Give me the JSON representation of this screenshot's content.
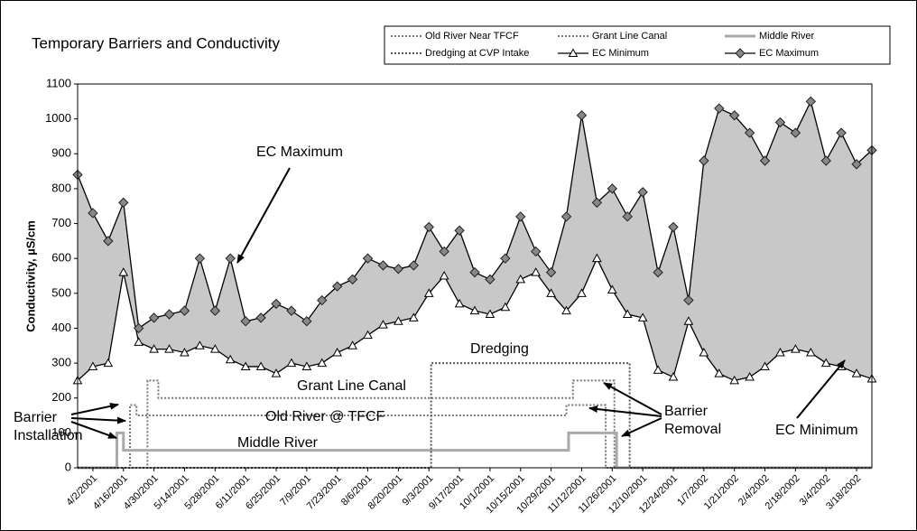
{
  "chart_data": {
    "type": "line",
    "title": "Temporary Barriers and Conductivity",
    "y_label": "Conductivity, µS/cm",
    "xlim": [
      "3/26/2001",
      "3/25/2002"
    ],
    "xticks": [
      "4/2/2001",
      "4/16/2001",
      "4/30/2001",
      "5/14/2001",
      "5/28/2001",
      "6/11/2001",
      "6/25/2001",
      "7/9/2001",
      "7/23/2001",
      "8/6/2001",
      "8/20/2001",
      "9/3/2001",
      "9/17/2001",
      "10/1/2001",
      "10/15/2001",
      "10/29/2001",
      "11/12/2001",
      "11/26/2001",
      "12/10/2001",
      "12/24/2001",
      "1/7/2002",
      "1/21/2002",
      "2/4/2002",
      "2/18/2002",
      "3/4/2002",
      "3/18/2002"
    ],
    "ylim": [
      0,
      1100
    ],
    "yticks": [
      0,
      100,
      200,
      300,
      400,
      500,
      600,
      700,
      800,
      900,
      1000,
      1100
    ],
    "grid": false,
    "range_fill": "#c8c8c8",
    "series": [
      {
        "name": "Old River Near TFCF",
        "color": "#777777",
        "style": "dotted",
        "x": [
          "3/26/2001",
          "4/19/2001",
          "4/19/2001",
          "4/22/2001",
          "4/22/2001",
          "11/5/2001",
          "11/5/2001",
          "11/23/2001",
          "11/23/2001",
          "3/25/2002"
        ],
        "values": [
          0,
          0,
          180,
          180,
          150,
          150,
          180,
          180,
          0,
          0
        ]
      },
      {
        "name": "Grant Line Canal",
        "color": "#777777",
        "style": "dotted",
        "x": [
          "3/26/2001",
          "4/27/2001",
          "4/27/2001",
          "5/2/2001",
          "5/2/2001",
          "11/8/2001",
          "11/8/2001",
          "11/27/2001",
          "11/27/2001",
          "3/25/2002"
        ],
        "values": [
          0,
          0,
          250,
          250,
          200,
          200,
          250,
          250,
          0,
          0
        ]
      },
      {
        "name": "Middle River",
        "color": "#aaaaaa",
        "style": "thick",
        "x": [
          "3/26/2001",
          "4/13/2001",
          "4/13/2001",
          "4/16/2001",
          "4/16/2001",
          "11/6/2001",
          "11/6/2001",
          "11/28/2001",
          "11/28/2001",
          "3/25/2002"
        ],
        "values": [
          0,
          0,
          100,
          100,
          50,
          50,
          100,
          100,
          0,
          0
        ]
      },
      {
        "name": "Dredging at CVP Intake",
        "color": "#555555",
        "style": "dotted",
        "x": [
          "3/26/2001",
          "9/4/2001",
          "9/4/2001",
          "12/4/2001",
          "12/4/2001",
          "3/25/2002"
        ],
        "values": [
          0,
          0,
          300,
          300,
          0,
          0
        ]
      },
      {
        "name": "EC Minimum",
        "color": "#000000",
        "style": "solid",
        "marker": "triangle",
        "x": [
          "3/26/2001",
          "4/2/2001",
          "4/9/2001",
          "4/16/2001",
          "4/23/2001",
          "4/30/2001",
          "5/7/2001",
          "5/14/2001",
          "5/21/2001",
          "5/28/2001",
          "6/4/2001",
          "6/11/2001",
          "6/18/2001",
          "6/25/2001",
          "7/2/2001",
          "7/9/2001",
          "7/16/2001",
          "7/23/2001",
          "7/30/2001",
          "8/6/2001",
          "8/13/2001",
          "8/20/2001",
          "8/27/2001",
          "9/3/2001",
          "9/10/2001",
          "9/17/2001",
          "9/24/2001",
          "10/1/2001",
          "10/8/2001",
          "10/15/2001",
          "10/22/2001",
          "10/29/2001",
          "11/5/2001",
          "11/12/2001",
          "11/19/2001",
          "11/26/2001",
          "12/3/2001",
          "12/10/2001",
          "12/17/2001",
          "12/24/2001",
          "12/31/2001",
          "1/7/2002",
          "1/14/2002",
          "1/21/2002",
          "1/28/2002",
          "2/4/2002",
          "2/11/2002",
          "2/18/2002",
          "2/25/2002",
          "3/4/2002",
          "3/11/2002",
          "3/18/2002",
          "3/25/2002"
        ],
        "values": [
          250,
          290,
          300,
          560,
          360,
          340,
          340,
          330,
          350,
          340,
          310,
          290,
          290,
          270,
          300,
          290,
          300,
          330,
          350,
          380,
          410,
          420,
          430,
          500,
          550,
          470,
          450,
          440,
          460,
          540,
          560,
          500,
          450,
          500,
          600,
          510,
          440,
          430,
          280,
          260,
          420,
          330,
          270,
          250,
          260,
          290,
          330,
          340,
          330,
          300,
          290,
          270,
          255
        ]
      },
      {
        "name": "EC Maximum",
        "color": "#000000",
        "style": "solid",
        "marker": "diamond",
        "x": [
          "3/26/2001",
          "4/2/2001",
          "4/9/2001",
          "4/16/2001",
          "4/23/2001",
          "4/30/2001",
          "5/7/2001",
          "5/14/2001",
          "5/21/2001",
          "5/28/2001",
          "6/4/2001",
          "6/11/2001",
          "6/18/2001",
          "6/25/2001",
          "7/2/2001",
          "7/9/2001",
          "7/16/2001",
          "7/23/2001",
          "7/30/2001",
          "8/6/2001",
          "8/13/2001",
          "8/20/2001",
          "8/27/2001",
          "9/3/2001",
          "9/10/2001",
          "9/17/2001",
          "9/24/2001",
          "10/1/2001",
          "10/8/2001",
          "10/15/2001",
          "10/22/2001",
          "10/29/2001",
          "11/5/2001",
          "11/12/2001",
          "11/19/2001",
          "11/26/2001",
          "12/3/2001",
          "12/10/2001",
          "12/17/2001",
          "12/24/2001",
          "12/31/2001",
          "1/7/2002",
          "1/14/2002",
          "1/21/2002",
          "1/28/2002",
          "2/4/2002",
          "2/11/2002",
          "2/18/2002",
          "2/25/2002",
          "3/4/2002",
          "3/11/2002",
          "3/18/2002",
          "3/25/2002"
        ],
        "values": [
          840,
          730,
          650,
          760,
          400,
          430,
          440,
          450,
          600,
          450,
          600,
          420,
          430,
          470,
          450,
          420,
          480,
          520,
          540,
          600,
          580,
          570,
          580,
          690,
          620,
          680,
          560,
          540,
          600,
          720,
          620,
          560,
          720,
          1010,
          760,
          800,
          720,
          790,
          560,
          690,
          480,
          880,
          1030,
          1010,
          960,
          880,
          990,
          960,
          1050,
          880,
          960,
          870,
          910
        ]
      }
    ],
    "annotations": [
      {
        "text": "EC Maximum"
      },
      {
        "text": "Dredging"
      },
      {
        "text": "Grant Line Canal"
      },
      {
        "text": "Old River @ TFCF"
      },
      {
        "text": "Middle River"
      },
      {
        "text": "Barrier Installation"
      },
      {
        "text": "Barrier Removal"
      },
      {
        "text": "EC Minimum"
      }
    ]
  }
}
